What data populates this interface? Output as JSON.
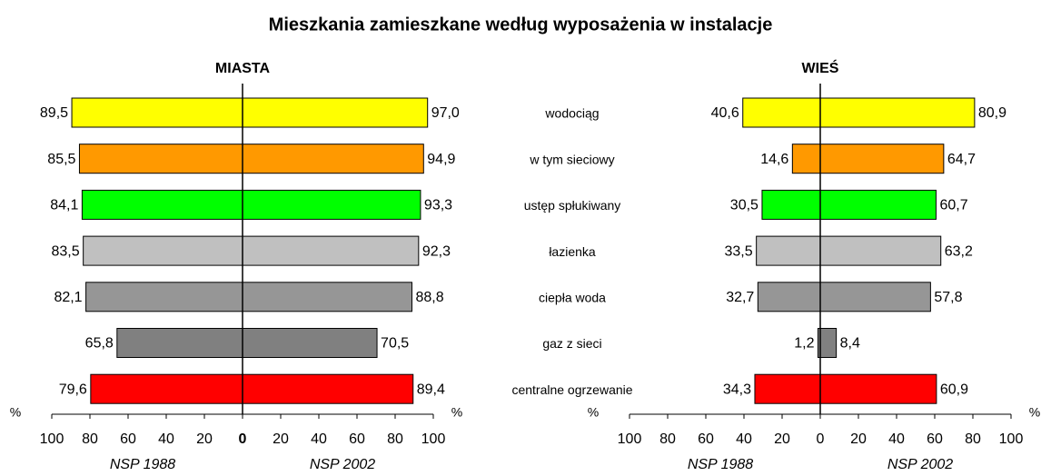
{
  "title": "Mieszkania zamieszkane według wyposażenia w instalacje",
  "categories": [
    "wodociąg",
    "w tym sieciowy",
    "ustęp spłukiwany",
    "łazienka",
    "ciepła woda",
    "gaz z sieci",
    "centralne ogrzewanie"
  ],
  "chart_data": [
    {
      "type": "butterfly",
      "title": "MIASTA",
      "unit": "%",
      "colors": [
        "#ffff00",
        "#ff9900",
        "#00ff00",
        "#c0c0c0",
        "#969696",
        "#808080",
        "#ff0000"
      ],
      "series": [
        {
          "name": "NSP 1988",
          "values": [
            89.5,
            85.5,
            84.1,
            83.5,
            82.1,
            65.8,
            79.6
          ],
          "value_labels": [
            "89,5",
            "85,5",
            "84,1",
            "83,5",
            "82,1",
            "65,8",
            "79,6"
          ]
        },
        {
          "name": "NSP 2002",
          "values": [
            97.0,
            94.9,
            93.3,
            92.3,
            88.8,
            70.5,
            89.4
          ],
          "value_labels": [
            "97,0",
            "94,9",
            "93,3",
            "92,3",
            "88,8",
            "70,5",
            "89,4"
          ]
        }
      ],
      "xlim": [
        0,
        100
      ],
      "xticks": [
        0,
        20,
        40,
        60,
        80,
        100
      ]
    },
    {
      "type": "butterfly",
      "title": "WIEŚ",
      "unit": "%",
      "colors": [
        "#ffff00",
        "#ff9900",
        "#00ff00",
        "#c0c0c0",
        "#969696",
        "#808080",
        "#ff0000"
      ],
      "series": [
        {
          "name": "NSP 1988",
          "values": [
            40.6,
            14.6,
            30.5,
            33.5,
            32.7,
            1.2,
            34.3
          ],
          "value_labels": [
            "40,6",
            "14,6",
            "30,5",
            "33,5",
            "32,7",
            "1,2",
            "34,3"
          ]
        },
        {
          "name": "NSP 2002",
          "values": [
            80.9,
            64.7,
            60.7,
            63.2,
            57.8,
            8.4,
            60.9
          ],
          "value_labels": [
            "80,9",
            "64,7",
            "60,7",
            "63,2",
            "57,8",
            "8,4",
            "60,9"
          ]
        }
      ],
      "xlim": [
        0,
        100
      ],
      "xticks": [
        0,
        20,
        40,
        60,
        80,
        100
      ]
    }
  ]
}
